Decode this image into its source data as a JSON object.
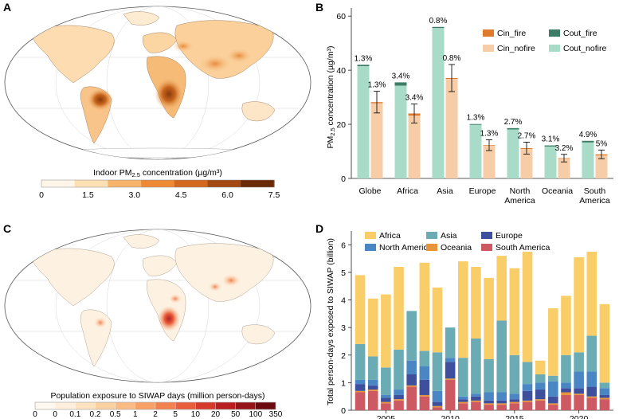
{
  "panels": {
    "a": {
      "letter": "A",
      "colorbar_title": "Indoor PM",
      "colorbar_title_sub": "2.5",
      "colorbar_title_unit": " concentration (µg/m³)",
      "colorbar_ticks": [
        "0",
        "1.5",
        "3.0",
        "4.5",
        "6.0",
        "7.5"
      ],
      "colorbar_colors": [
        "#fff6e9",
        "#fde0b4",
        "#f9b46b",
        "#ee8a35",
        "#d2691e",
        "#a34a12",
        "#6b2a06"
      ]
    },
    "c": {
      "letter": "C",
      "colorbar_title": "Population exposure to SIWAP days (million person-days)",
      "colorbar_ticks": [
        "0",
        "0",
        "0.1",
        "0.2",
        "0.5",
        "1",
        "2",
        "5",
        "10",
        "20",
        "50",
        "100",
        "350"
      ],
      "colorbar_colors": [
        "#fff8ee",
        "#fdefdc",
        "#fde2c0",
        "#fcd1a2",
        "#fbbb84",
        "#f9a067",
        "#f3804f",
        "#e85d3c",
        "#d63a2c",
        "#b91d20",
        "#941317",
        "#6d0a0f"
      ]
    }
  },
  "chart_data": [
    {
      "panel": "B",
      "type": "bar",
      "ylabel": "PM",
      "ylabel_sub": "2.5",
      "ylabel_unit": " concentration (µg/m³)",
      "ylim": [
        0,
        63
      ],
      "yticks": [
        "0",
        "20",
        "40",
        "60"
      ],
      "categories": [
        "Globe",
        "Africa",
        "Asia",
        "Europe",
        "North America",
        "Oceania",
        "South America"
      ],
      "category_lines": [
        [
          "Globe"
        ],
        [
          "Africa"
        ],
        [
          "Asia"
        ],
        [
          "Europe"
        ],
        [
          "North",
          "America"
        ],
        [
          "Oceania"
        ],
        [
          "South",
          "America"
        ]
      ],
      "series": [
        {
          "name": "Cout_nofire",
          "color": "#a8dcc8",
          "values": [
            41.5,
            34.3,
            55.6,
            19.8,
            18.1,
            11.8,
            13.3
          ]
        },
        {
          "name": "Cout_fire",
          "color": "#3d7d67",
          "values": [
            0.5,
            1.2,
            0.4,
            0.3,
            0.5,
            0.4,
            0.6
          ]
        },
        {
          "name": "Cin_nofire",
          "color": "#f7cda7",
          "values": [
            27.8,
            23.2,
            36.8,
            12.1,
            10.9,
            7.3,
            8.5
          ]
        },
        {
          "name": "Cin_fire",
          "color": "#e07a2c",
          "values": [
            0.4,
            0.8,
            0.3,
            0.2,
            0.3,
            0.2,
            0.4
          ]
        }
      ],
      "cin_error": [
        4.0,
        3.5,
        5.0,
        2.0,
        2.2,
        1.4,
        1.6
      ],
      "cout_labels": [
        "1.3%",
        "3.4%",
        "0.8%",
        "1.3%",
        "2.7%",
        "3.1%",
        "4.9%"
      ],
      "cin_labels": [
        "1.3%",
        "3.4%",
        "0.8%",
        "1.3%",
        "2.7%",
        "3.2%",
        "5%"
      ],
      "legend": [
        "Cin_fire",
        "Cout_fire",
        "Cin_nofire",
        "Cout_nofire"
      ]
    },
    {
      "panel": "D",
      "type": "bar",
      "stacked": true,
      "ylabel": "Total person-days exposed to SIWAP (billion)",
      "ylim": [
        0,
        6.5
      ],
      "yticks": [
        "0",
        "1",
        "2",
        "3",
        "4",
        "5",
        "6"
      ],
      "x": [
        2003,
        2004,
        2005,
        2006,
        2007,
        2008,
        2009,
        2010,
        2011,
        2012,
        2013,
        2014,
        2015,
        2016,
        2017,
        2018,
        2019,
        2020,
        2021,
        2022
      ],
      "xticks": [
        "2005",
        "2010",
        "2015",
        "2020"
      ],
      "series": [
        {
          "name": "South America",
          "color": "#cd5a63",
          "values": [
            0.65,
            0.7,
            0.25,
            0.35,
            0.85,
            0.5,
            0.1,
            1.1,
            0.25,
            0.3,
            0.2,
            0.2,
            0.25,
            0.3,
            0.35,
            0.2,
            0.55,
            0.55,
            0.45,
            0.4
          ]
        },
        {
          "name": "Oceania",
          "color": "#e8943a",
          "values": [
            0.05,
            0.05,
            0.05,
            0.05,
            0.05,
            0.05,
            0.05,
            0.05,
            0.05,
            0.05,
            0.05,
            0.05,
            0.05,
            0.05,
            0.05,
            0.05,
            0.1,
            0.05,
            0.05,
            0.05
          ]
        },
        {
          "name": "Europe",
          "color": "#3e4f9e",
          "values": [
            0.25,
            0.15,
            0.15,
            0.15,
            0.4,
            0.55,
            0.15,
            0.6,
            0.1,
            0.15,
            0.1,
            0.1,
            0.1,
            0.35,
            0.35,
            0.25,
            0.15,
            0.2,
            0.35,
            0.1
          ]
        },
        {
          "name": "North America",
          "color": "#4a85c4",
          "values": [
            0.15,
            0.2,
            0.1,
            0.2,
            0.5,
            0.5,
            0.4,
            0.15,
            0.1,
            0.1,
            0.3,
            0.3,
            0.2,
            0.25,
            0.25,
            0.55,
            0.2,
            0.6,
            0.55,
            0.25
          ]
        },
        {
          "name": "Asia",
          "color": "#6aabb4",
          "values": [
            1.3,
            0.85,
            1.0,
            1.45,
            1.8,
            0.55,
            1.4,
            1.1,
            1.4,
            2.0,
            1.2,
            2.6,
            1.4,
            0.8,
            0.3,
            0.2,
            1.0,
            0.7,
            1.3,
            0.2
          ]
        },
        {
          "name": "Africa",
          "color": "#f9cd68",
          "values": [
            2.5,
            2.1,
            2.65,
            3.0,
            0.0,
            3.2,
            2.35,
            0.0,
            3.5,
            2.6,
            2.95,
            2.35,
            3.15,
            4.0,
            0.5,
            2.45,
            2.15,
            3.45,
            3.05,
            2.85
          ]
        }
      ],
      "legend": [
        "Africa",
        "Asia",
        "Europe",
        "North America",
        "Oceania",
        "South America"
      ]
    }
  ]
}
